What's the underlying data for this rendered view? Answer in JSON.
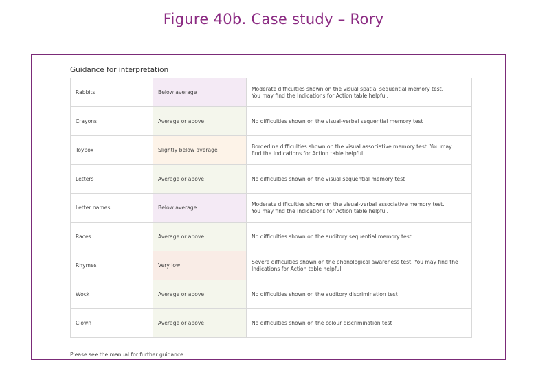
{
  "figure_title": "Figure 40b. Case study – Rory",
  "guidance_heading": "Guidance for interpretation",
  "colors": {
    "title": "#8b2a82",
    "border": "#7b2b78",
    "below_average": "#f4eaf5",
    "average_or_above": "#f4f6ec",
    "slightly_below_average": "#fdf3e8",
    "very_low": "#f9ece6"
  },
  "rows": [
    {
      "test": "Rabbits",
      "score": "Below average",
      "level": "below_average",
      "description": "Moderate difficulties shown on the visual spatial sequential memory test.",
      "description_2": "You may find the Indications for Action table helpful."
    },
    {
      "test": "Crayons",
      "score": "Average or above",
      "level": "average_or_above",
      "description": "No difficulties shown on the visual-verbal sequential memory test",
      "description_2": ""
    },
    {
      "test": "Toybox",
      "score": "Slightly below average",
      "level": "slightly_below_average",
      "description": "Borderline difficulties shown on the visual associative memory test. You may",
      "description_2": "find the Indications for Action table helpful."
    },
    {
      "test": "Letters",
      "score": "Average or above",
      "level": "average_or_above",
      "description": "No difficulties shown on the visual sequential memory test",
      "description_2": ""
    },
    {
      "test": "Letter names",
      "score": "Below average",
      "level": "below_average",
      "description": "Moderate difficulties shown on the visual-verbal associative memory test.",
      "description_2": "You may find the Indications for Action table helpful."
    },
    {
      "test": "Races",
      "score": "Average or above",
      "level": "average_or_above",
      "description": "No difficulties shown on the auditory sequential memory test",
      "description_2": ""
    },
    {
      "test": "Rhymes",
      "score": "Very low",
      "level": "very_low",
      "description": "Severe difficulties shown on the phonological awareness test. You may find the",
      "description_2": "Indications for Action table helpful"
    },
    {
      "test": "Wock",
      "score": "Average or above",
      "level": "average_or_above",
      "description": "No difficulties shown on the auditory discrimination test",
      "description_2": ""
    },
    {
      "test": "Clown",
      "score": "Average or above",
      "level": "average_or_above",
      "description": "No difficulties shown on the colour discrimination test",
      "description_2": ""
    }
  ],
  "footer_note": "Please see the manual for further guidance."
}
